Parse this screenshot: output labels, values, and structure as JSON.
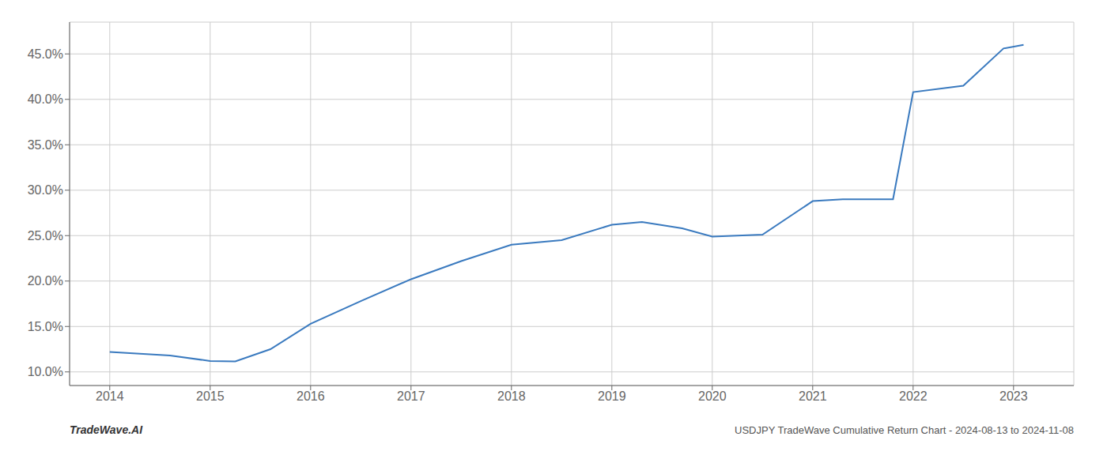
{
  "chart_data": {
    "type": "line",
    "title": "USDJPY TradeWave Cumulative Return Chart - 2024-08-13 to 2024-11-08",
    "annotations": [
      "TradeWave.AI"
    ],
    "color": "#3a7abf",
    "x": [
      2014,
      2014.6,
      2015,
      2015.25,
      2015.6,
      2016,
      2016.5,
      2017,
      2017.5,
      2018,
      2018.5,
      2019,
      2019.3,
      2019.7,
      2020,
      2020.5,
      2021,
      2021.3,
      2021.8,
      2022,
      2022.5,
      2022.9,
      2023.1
    ],
    "values": [
      12.2,
      11.8,
      11.2,
      11.15,
      12.5,
      15.3,
      17.8,
      20.2,
      22.2,
      24.0,
      24.5,
      26.2,
      26.5,
      25.8,
      24.9,
      25.1,
      28.8,
      29.0,
      29.0,
      40.8,
      41.5,
      45.6,
      46.0
    ],
    "xlim": [
      2013.6,
      2023.6
    ],
    "ylim": [
      8.5,
      48.5
    ],
    "xticks": [
      2014,
      2015,
      2016,
      2017,
      2018,
      2019,
      2020,
      2021,
      2022,
      2023
    ],
    "yticks": [
      {
        "value": 10,
        "label": "10.0%"
      },
      {
        "value": 15,
        "label": "15.0%"
      },
      {
        "value": 20,
        "label": "20.0%"
      },
      {
        "value": 25,
        "label": "25.0%"
      },
      {
        "value": 30,
        "label": "30.0%"
      },
      {
        "value": 35,
        "label": "35.0%"
      },
      {
        "value": 40,
        "label": "40.0%"
      },
      {
        "value": 45,
        "label": "45.0%"
      }
    ],
    "grid": true
  }
}
